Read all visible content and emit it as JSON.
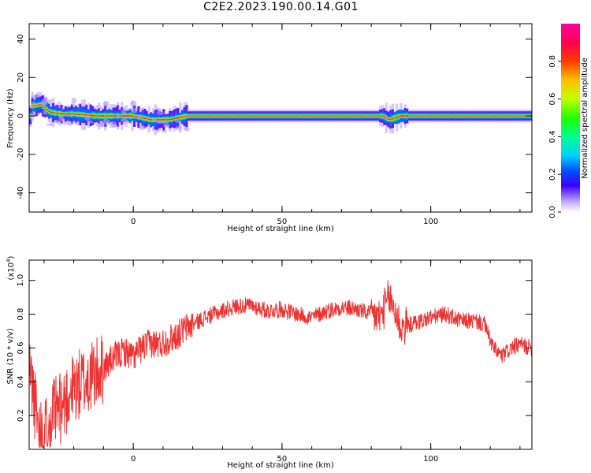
{
  "title": "C2E2.2023.190.00.14.G01",
  "chart_data": [
    {
      "type": "heatmap",
      "xlabel": "Height of straight line (km)",
      "ylabel": "Frequency (Hz)",
      "xlim": [
        -35,
        134
      ],
      "ylim": [
        -50,
        48
      ],
      "xticks": [
        "0",
        "50",
        "100"
      ],
      "xtick_values": [
        0,
        50,
        100
      ],
      "yticks": [
        "-40",
        "-20",
        "0",
        "20",
        "40"
      ],
      "ytick_values": [
        -40,
        -20,
        0,
        20,
        40
      ],
      "colorbar": {
        "label": "Normalized spectral amplitude",
        "range": [
          0,
          1
        ],
        "ticks": [
          "0.0",
          "0.2",
          "0.4",
          "0.6",
          "0.8"
        ],
        "tick_values": [
          0,
          0.2,
          0.4,
          0.6,
          0.8
        ]
      },
      "ridge": {
        "description_points": [
          {
            "x": -34,
            "freq": 5
          },
          {
            "x": -31,
            "freq": 6
          },
          {
            "x": -28,
            "freq": 2
          },
          {
            "x": -24,
            "freq": 1
          },
          {
            "x": -20,
            "freq": 1
          },
          {
            "x": -12,
            "freq": 0
          },
          {
            "x": 0,
            "freq": 0
          },
          {
            "x": 6,
            "freq": -2
          },
          {
            "x": 12,
            "freq": -2
          },
          {
            "x": 18,
            "freq": 0
          },
          {
            "x": 40,
            "freq": 0
          },
          {
            "x": 84,
            "freq": 0
          },
          {
            "x": 86,
            "freq": -2
          },
          {
            "x": 90,
            "freq": 0
          },
          {
            "x": 134,
            "freq": 0
          }
        ]
      }
    },
    {
      "type": "line",
      "xlabel": "Height of straight line (km)",
      "ylabel": "SNR (10 * v/v)",
      "y_multiplier": "(x10",
      "y_multiplier_exp": "4",
      "y_multiplier_close": ")",
      "xlim": [
        -35,
        134
      ],
      "ylim": [
        0,
        1.12
      ],
      "xticks": [
        "0",
        "50",
        "100"
      ],
      "xtick_values": [
        0,
        50,
        100
      ],
      "yticks": [
        "0.2",
        "0.4",
        "0.6",
        "0.8",
        "1.0"
      ],
      "ytick_values": [
        0.2,
        0.4,
        0.6,
        0.8,
        1.0
      ],
      "series": [
        {
          "color": "#ee3333",
          "x": [
            -35,
            -32,
            -30,
            -27,
            -24,
            -21,
            -18,
            -15,
            -12,
            -9,
            -6,
            -3,
            0,
            3,
            6,
            9,
            12,
            15,
            18,
            21,
            24,
            27,
            30,
            33,
            36,
            40,
            45,
            50,
            55,
            60,
            65,
            70,
            75,
            80,
            83,
            86,
            88,
            90,
            95,
            100,
            105,
            110,
            115,
            118,
            121,
            124,
            127,
            130,
            134
          ],
          "y": [
            0.5,
            0.15,
            0.1,
            0.2,
            0.25,
            0.35,
            0.38,
            0.42,
            0.45,
            0.5,
            0.55,
            0.58,
            0.55,
            0.6,
            0.63,
            0.62,
            0.65,
            0.68,
            0.72,
            0.75,
            0.78,
            0.8,
            0.82,
            0.84,
            0.85,
            0.85,
            0.82,
            0.83,
            0.8,
            0.78,
            0.82,
            0.84,
            0.83,
            0.8,
            0.78,
            0.9,
            0.82,
            0.72,
            0.75,
            0.78,
            0.8,
            0.76,
            0.76,
            0.74,
            0.6,
            0.55,
            0.6,
            0.62,
            0.6
          ]
        }
      ]
    }
  ]
}
